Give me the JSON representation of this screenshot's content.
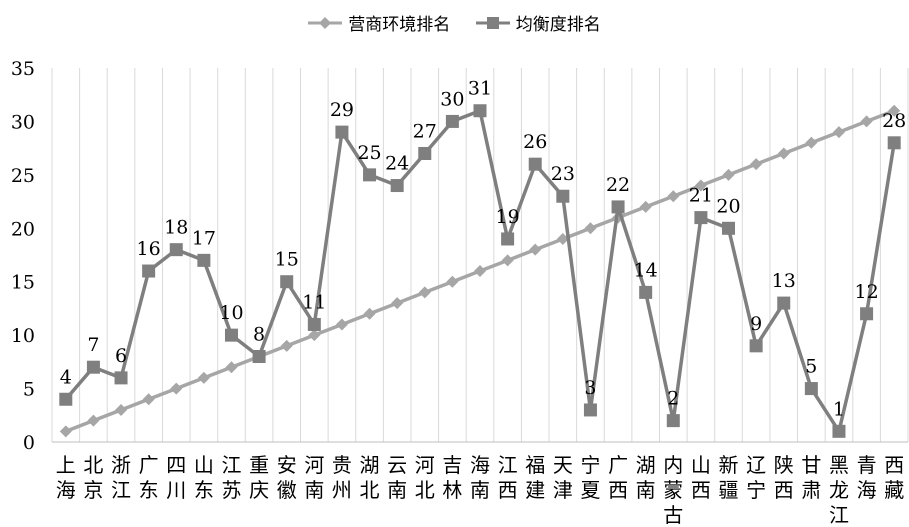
{
  "chart_data": {
    "type": "line",
    "categories": [
      "上海",
      "北京",
      "浙江",
      "广东",
      "四川",
      "山东",
      "江苏",
      "重庆",
      "安徽",
      "河南",
      "贵州",
      "湖北",
      "云南",
      "河北",
      "吉林",
      "海南",
      "江西",
      "福建",
      "天津",
      "宁夏",
      "广西",
      "湖南",
      "内蒙古",
      "山西",
      "新疆",
      "辽宁",
      "陕西",
      "甘肃",
      "黑龙江",
      "青海",
      "西藏"
    ],
    "series": [
      {
        "name": "营商环境排名",
        "color": "#a6a6a6",
        "marker": "diamond",
        "values": [
          1,
          2,
          3,
          4,
          5,
          6,
          7,
          8,
          9,
          10,
          11,
          12,
          13,
          14,
          15,
          16,
          17,
          18,
          19,
          20,
          21,
          22,
          23,
          24,
          25,
          26,
          27,
          28,
          29,
          30,
          31
        ],
        "show_labels": false
      },
      {
        "name": "均衡度排名",
        "color": "#7f7f7f",
        "marker": "square",
        "values": [
          4,
          7,
          6,
          16,
          18,
          17,
          10,
          8,
          15,
          11,
          29,
          25,
          24,
          27,
          30,
          31,
          19,
          26,
          23,
          3,
          22,
          14,
          2,
          21,
          20,
          9,
          13,
          5,
          1,
          12,
          28
        ],
        "show_labels": true
      }
    ],
    "ylim": [
      0,
      35
    ],
    "yticks": [
      0,
      5,
      10,
      15,
      20,
      25,
      30,
      35
    ],
    "grid": "vertical",
    "legend_position": "top"
  }
}
